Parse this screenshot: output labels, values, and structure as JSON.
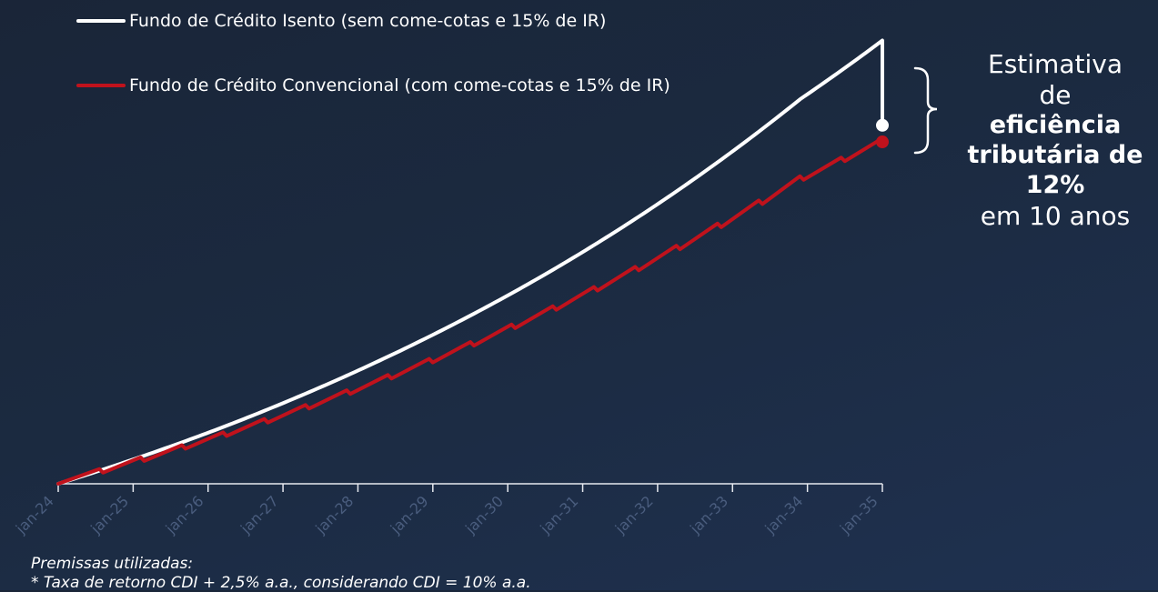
{
  "legend": {
    "isento": "Fundo de Crédito Isento (sem come-cotas e 15% de IR)",
    "convencional": "Fundo de Crédito Convencional (com come-cotas e 15% de IR)"
  },
  "callout": {
    "line1": "Estimativa",
    "line2": "de",
    "line3": "eficiência",
    "line4": "tributária de",
    "line5": "12%",
    "line6": "em 10 anos"
  },
  "premissas": {
    "title": "Premissas utilizadas:",
    "line1": "* Taxa de retorno CDI + 2,5% a.a., considerando CDI = 10% a.a."
  },
  "colors": {
    "isento": "#ffffff",
    "convencional": "#c0121c",
    "axis": "#e6e9ef",
    "tick_label": "#4a5d7e"
  },
  "chart_data": {
    "type": "line",
    "x_tick_labels": [
      "jan-24",
      "jan-25",
      "jan-26",
      "jan-27",
      "jan-28",
      "jan-29",
      "jan-30",
      "jan-31",
      "jan-32",
      "jan-33",
      "jan-34",
      "jan-35"
    ],
    "x_tick_count": 12,
    "ylim": [
      100,
      290
    ],
    "grid": false,
    "legend_position": "top-left",
    "series": [
      {
        "name": "Fundo de Crédito Isento (sem come-cotas e 15% de IR)",
        "color": "#ffffff",
        "step_at_end": true,
        "values": [
          100.0,
          111.2,
          123.6,
          137.5,
          152.9,
          170.0,
          189.0,
          210.2,
          233.8,
          260.0,
          284.5
        ],
        "after_tax_final": 249.2
      },
      {
        "name": "Fundo de Crédito Convencional (com come-cotas e 15% de IR)",
        "color": "#c0121c",
        "sawtooth": true,
        "values": [
          100.0,
          109.5,
          119.9,
          131.3,
          143.8,
          157.5,
          172.4,
          188.8,
          206.8,
          226.5,
          242.3
        ]
      }
    ]
  }
}
